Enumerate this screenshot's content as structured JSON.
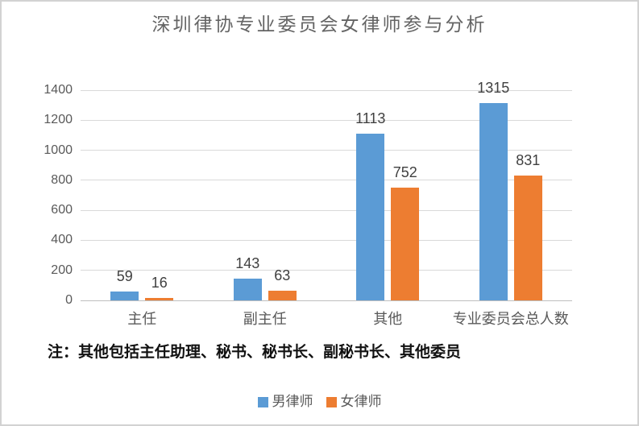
{
  "chart_data": {
    "type": "bar",
    "title": "深圳律协专业委员会女律师参与分析",
    "categories": [
      "主任",
      "副主任",
      "其他",
      "专业委员会总人数"
    ],
    "series": [
      {
        "name": "男律师",
        "color": "#5B9BD5",
        "values": [
          59,
          143,
          1113,
          1315
        ]
      },
      {
        "name": "女律师",
        "color": "#ED7D31",
        "values": [
          16,
          63,
          752,
          831
        ]
      }
    ],
    "xlabel": "",
    "ylabel": "",
    "ylim": [
      0,
      1400
    ],
    "y_ticks": [
      0,
      200,
      400,
      600,
      800,
      1000,
      1200,
      1400
    ],
    "grid": true,
    "data_labels": true,
    "legend_position": "bottom",
    "note": "注：其他包括主任助理、秘书、秘书长、副秘书长、其他委员"
  },
  "colors": {
    "gridline": "#d9d9d9",
    "axis_line": "#bfbfbf",
    "title_text": "#646464",
    "tick_text": "#595959",
    "data_label_text": "#404040",
    "note_text": "#111111",
    "frame_border": "#d2d2d2"
  }
}
